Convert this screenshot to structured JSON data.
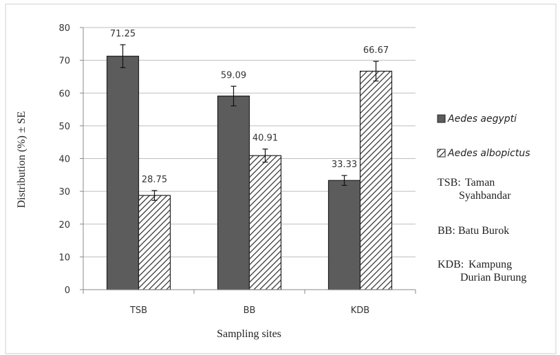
{
  "chart_data": {
    "type": "bar",
    "categories": [
      "TSB",
      "BB",
      "KDB"
    ],
    "series": [
      {
        "name": "Aedes aegypti",
        "values": [
          71.25,
          59.09,
          33.33
        ],
        "errors": [
          3.5,
          3.0,
          1.5
        ],
        "labels": [
          "71.25",
          "59.09",
          "33.33"
        ],
        "color": "#5c5c5c"
      },
      {
        "name": "Aedes albopictus",
        "values": [
          28.75,
          40.91,
          66.67
        ],
        "errors": [
          1.5,
          2.0,
          3.0
        ],
        "labels": [
          "28.75",
          "40.91",
          "66.67"
        ],
        "color": "#ffffff"
      }
    ],
    "xlabel": "Sampling sites",
    "ylabel": "Distribution (%) ± SE",
    "ylim": [
      0,
      80
    ],
    "yticks": [
      "0",
      "10",
      "20",
      "30",
      "40",
      "50",
      "60",
      "70",
      "80"
    ],
    "grid": true,
    "legend_position": "right"
  },
  "notes": [
    {
      "abbr": "TSB:",
      "lines": [
        "Taman",
        "Syahbandar"
      ]
    },
    {
      "abbr": "BB:",
      "lines": [
        "Batu Burok"
      ]
    },
    {
      "abbr": "KDB:",
      "lines": [
        "Kampung",
        "Durian Burung"
      ]
    }
  ]
}
